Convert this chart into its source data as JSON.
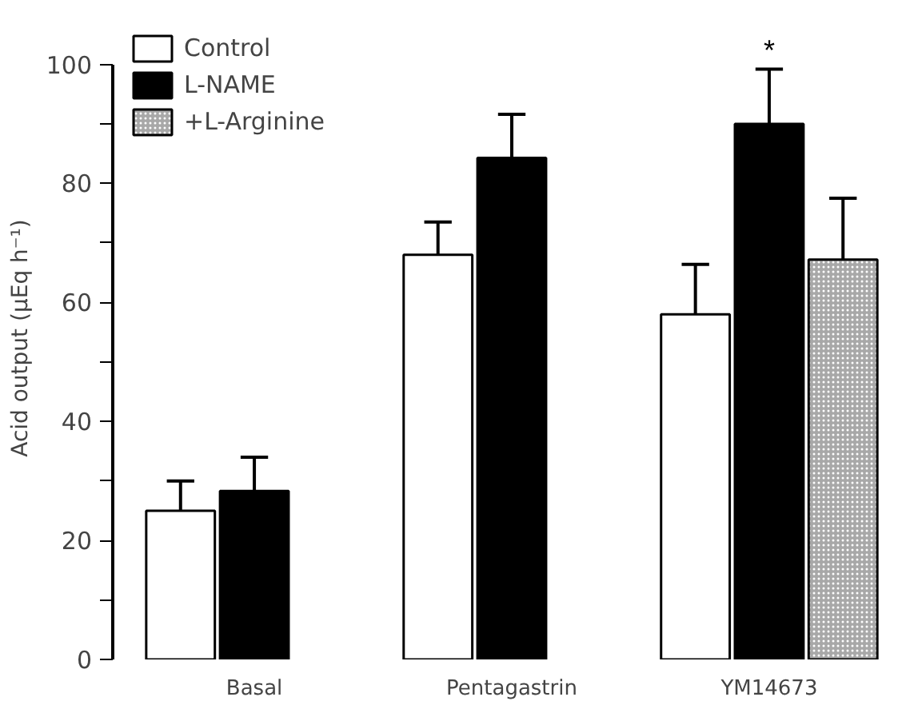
{
  "chart_data": {
    "type": "bar",
    "ylabel": "Acid output (µEq h⁻¹)",
    "categories": [
      "Basal",
      "Pentagastrin",
      "YM14673"
    ],
    "series": [
      {
        "name": "Control",
        "color": "#ffffff",
        "values": [
          25,
          68,
          58
        ],
        "errors": [
          [
            25,
            30
          ],
          [
            68,
            73.5
          ],
          [
            58,
            66.4
          ]
        ]
      },
      {
        "name": "L-NAME",
        "color": "#000000",
        "values": [
          28.3,
          84.3,
          90
        ],
        "errors": [
          [
            28.3,
            34
          ],
          [
            84.3,
            91.6
          ],
          [
            90,
            99.2
          ]
        ]
      },
      {
        "name": "+L-Arginine",
        "color": "#a8a8a8",
        "values": [
          null,
          null,
          67.2
        ],
        "errors": [
          null,
          null,
          [
            67.2,
            77.5
          ]
        ]
      }
    ],
    "ylim": [
      0,
      100
    ],
    "yticks": [
      0,
      {
        "value": 10,
        "label": null
      },
      20,
      {
        "value": 30,
        "label": null
      },
      40,
      {
        "value": 50,
        "label": null
      },
      60,
      {
        "value": 70,
        "label": null
      },
      80,
      {
        "value": 90,
        "label": null
      },
      100
    ],
    "annotations": [
      {
        "text": "*",
        "x": "YM14673",
        "y": 99.2
      }
    ],
    "legend": "top left",
    "grid": false
  }
}
